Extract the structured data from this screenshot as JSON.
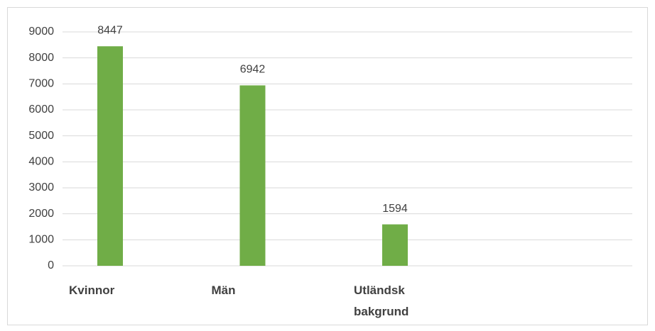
{
  "chart_data": {
    "type": "bar",
    "categories": [
      "Kvinnor",
      "Män",
      "Utländsk bakgrund",
      null
    ],
    "values": [
      8447,
      6942,
      1594,
      null
    ],
    "color": "#70ad47",
    "ylim": [
      0,
      9000
    ],
    "yticks": [
      0,
      1000,
      2000,
      3000,
      4000,
      5000,
      6000,
      7000,
      8000,
      9000
    ],
    "grid": true,
    "data_labels": true
  }
}
